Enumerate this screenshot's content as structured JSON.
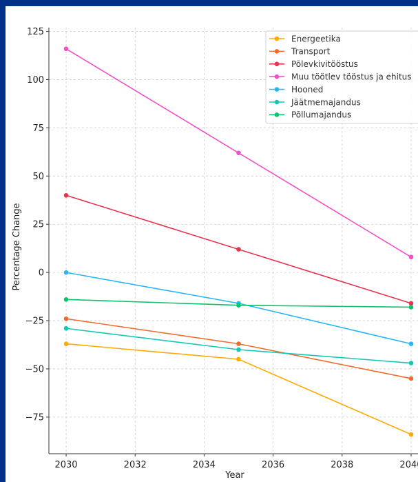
{
  "chart_data": {
    "type": "line",
    "title": "",
    "xlabel": "Year",
    "ylabel": "Percentage Change",
    "x": [
      2030,
      2035,
      2040
    ],
    "xlim": [
      2029.5,
      2040.2
    ],
    "ylim": [
      -94,
      127
    ],
    "xticks": [
      2030,
      2032,
      2034,
      2036,
      2038,
      2040
    ],
    "yticks": [
      125,
      100,
      75,
      50,
      25,
      0,
      -25,
      -50,
      -75
    ],
    "ytick_labels": [
      "125",
      "100",
      "75",
      "50",
      "25",
      "0",
      "−25",
      "−50",
      "−75"
    ],
    "grid": true,
    "legend_position": "top-right",
    "series": [
      {
        "name": "Energeetika",
        "color": "#ffaa00",
        "values": [
          -37,
          -45,
          -84
        ]
      },
      {
        "name": "Transport",
        "color": "#f26b2f",
        "values": [
          -24,
          -37,
          -55
        ]
      },
      {
        "name": "Põlevkivitööstus",
        "color": "#e8334f",
        "values": [
          40,
          12,
          -16
        ]
      },
      {
        "name": "Muu töötlev tööstus ja ehitus",
        "color": "#f050c8",
        "values": [
          116,
          62,
          8
        ]
      },
      {
        "name": "Hooned",
        "color": "#29b6f6",
        "values": [
          0,
          -16,
          -37
        ]
      },
      {
        "name": "Jäätmemajandus",
        "color": "#14c9b4",
        "values": [
          -29,
          -40,
          -47
        ]
      },
      {
        "name": "Põllumajandus",
        "color": "#0cc26a",
        "values": [
          -14,
          -17,
          -18
        ]
      }
    ]
  }
}
